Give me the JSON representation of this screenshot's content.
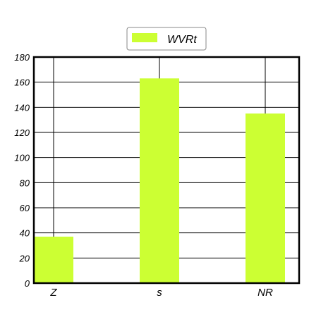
{
  "chart_data": {
    "type": "bar",
    "categories": [
      "Z",
      "s",
      "NR"
    ],
    "series": [
      {
        "name": "WVRt",
        "values": [
          37,
          163,
          135
        ],
        "color": "#ccff33"
      }
    ],
    "yticks": [
      0,
      20,
      40,
      60,
      80,
      100,
      120,
      140,
      160,
      180
    ],
    "ylim": [
      0,
      180
    ],
    "grid": true,
    "legend": {
      "position": "top-center"
    },
    "title": "",
    "xlabel": "",
    "ylabel": ""
  }
}
